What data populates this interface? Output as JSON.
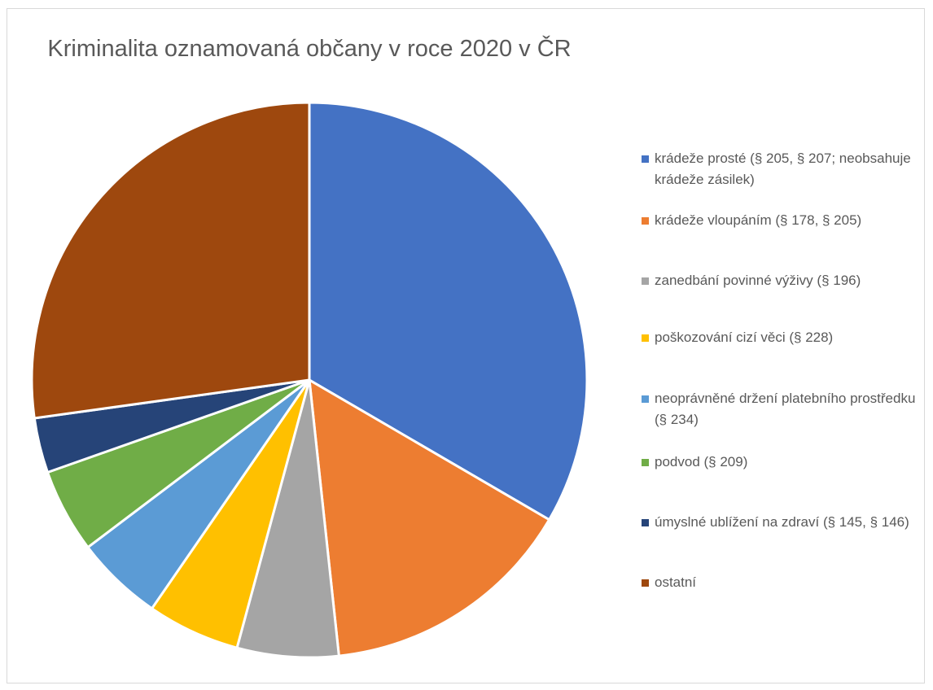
{
  "chart_data": {
    "type": "pie",
    "title": "Kriminalita oznamovaná občany v roce 2020 v ČR",
    "categories": [
      "krádeže prosté (§ 205, § 207; neobsahuje krádeže zásilek)",
      "krádeže vloupáním (§ 178, § 205)",
      "zanedbání povinné výživy (§ 196)",
      "poškozování cizí věci (§ 228)",
      "neoprávněné držení platebního prostředku (§ 234)",
      "podvod (§ 209)",
      "úmyslné ublížení na zdraví (§ 145, § 146)",
      "ostatní"
    ],
    "values": [
      33.4,
      14.9,
      5.9,
      5.4,
      5.1,
      4.9,
      3.2,
      27.2
    ],
    "colors": [
      "#4472c4",
      "#ed7d31",
      "#a5a5a5",
      "#ffc000",
      "#5b9bd5",
      "#70ad47",
      "#264478",
      "#9e480e"
    ],
    "legend": "right"
  }
}
